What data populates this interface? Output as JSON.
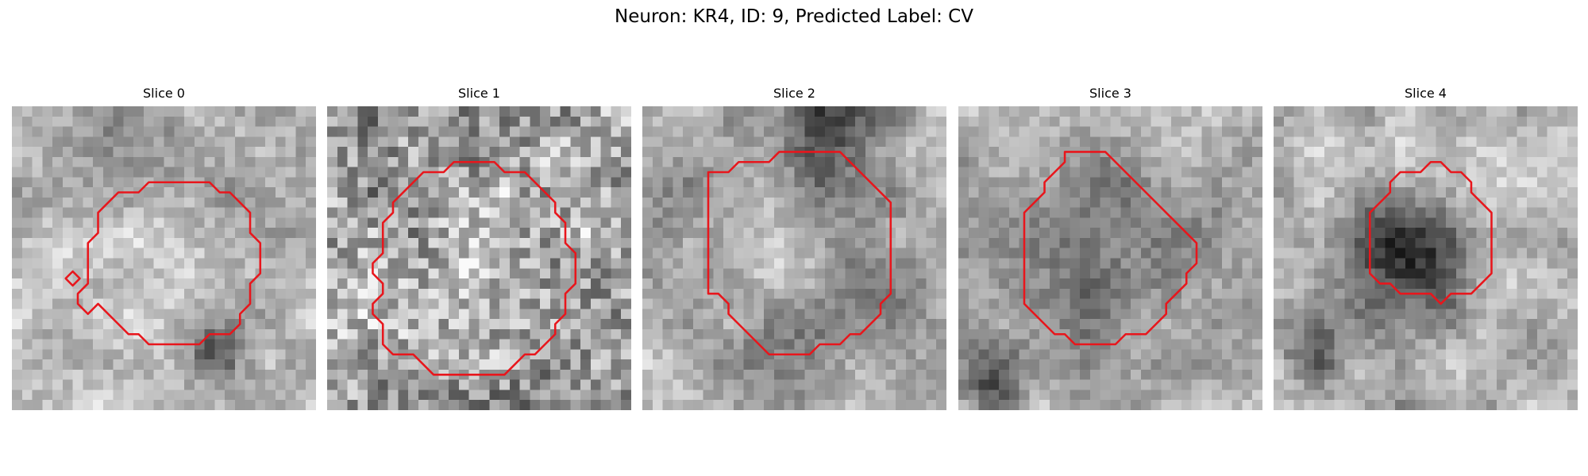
{
  "figure": {
    "title": "Neuron: KR4, ID: 9, Predicted Label: CV",
    "grid_size": 30,
    "colormap": "gray",
    "contour_color": "#e8161c"
  },
  "panels": [
    {
      "label": "Slice 0",
      "seed": 11,
      "base_gray": 185,
      "noise": 28,
      "blobs": [
        {
          "cx": 14.0,
          "cy": 15.5,
          "r": 5.5,
          "delta": 25
        },
        {
          "cx": 12.0,
          "cy": 2.5,
          "r": 6.0,
          "delta": -55
        },
        {
          "cx": 19.5,
          "cy": 24.5,
          "r": 2.5,
          "delta": -85
        },
        {
          "cx": 24.0,
          "cy": 8.0,
          "r": 4.0,
          "delta": -25
        }
      ],
      "contours": [
        [
          [
            13.5,
            7.5
          ],
          [
            19.5,
            7.5
          ],
          [
            20.5,
            8.5
          ],
          [
            21.5,
            8.5
          ],
          [
            23.5,
            10.5
          ],
          [
            23.5,
            12.5
          ],
          [
            24.5,
            13.5
          ],
          [
            24.5,
            16.5
          ],
          [
            23.5,
            17.5
          ],
          [
            23.5,
            19.5
          ],
          [
            22.5,
            20.5
          ],
          [
            22.5,
            21.5
          ],
          [
            21.5,
            22.5
          ],
          [
            19.5,
            22.5
          ],
          [
            18.5,
            23.5
          ],
          [
            13.5,
            23.5
          ],
          [
            12.5,
            22.5
          ],
          [
            11.5,
            22.5
          ],
          [
            10.5,
            21.5
          ],
          [
            9.5,
            20.5
          ],
          [
            8.5,
            19.5
          ],
          [
            7.5,
            20.5
          ],
          [
            6.5,
            19.5
          ],
          [
            6.5,
            18.5
          ],
          [
            7.5,
            17.5
          ],
          [
            7.5,
            13.5
          ],
          [
            8.5,
            12.5
          ],
          [
            8.5,
            10.5
          ],
          [
            10.5,
            8.5
          ],
          [
            12.5,
            8.5
          ]
        ],
        [
          [
            6.0,
            16.3
          ],
          [
            6.7,
            17.0
          ],
          [
            6.0,
            17.7
          ],
          [
            5.3,
            17.0
          ]
        ]
      ]
    },
    {
      "label": "Slice 1",
      "seed": 23,
      "base_gray": 160,
      "noise": 62,
      "blobs": [
        {
          "cx": 15.0,
          "cy": 14.0,
          "r": 6.5,
          "delta": 18
        }
      ],
      "contours": [
        [
          [
            13.5,
            5.5
          ],
          [
            16.5,
            5.5
          ],
          [
            17.5,
            6.5
          ],
          [
            19.5,
            6.5
          ],
          [
            22.5,
            9.5
          ],
          [
            22.5,
            10.5
          ],
          [
            23.5,
            11.5
          ],
          [
            23.5,
            13.5
          ],
          [
            24.5,
            14.5
          ],
          [
            24.5,
            17.5
          ],
          [
            23.5,
            18.5
          ],
          [
            23.5,
            20.5
          ],
          [
            22.5,
            21.5
          ],
          [
            22.5,
            22.5
          ],
          [
            20.5,
            24.5
          ],
          [
            19.5,
            24.5
          ],
          [
            17.5,
            26.5
          ],
          [
            16.5,
            26.5
          ],
          [
            15.5,
            26.5
          ],
          [
            10.5,
            26.5
          ],
          [
            8.5,
            24.5
          ],
          [
            6.5,
            24.5
          ],
          [
            5.5,
            23.5
          ],
          [
            5.5,
            21.5
          ],
          [
            4.5,
            20.5
          ],
          [
            4.5,
            19.5
          ],
          [
            5.5,
            18.5
          ],
          [
            5.5,
            17.5
          ],
          [
            4.5,
            16.5
          ],
          [
            4.5,
            15.5
          ],
          [
            5.5,
            14.5
          ],
          [
            5.5,
            11.5
          ],
          [
            6.5,
            10.5
          ],
          [
            6.5,
            9.5
          ],
          [
            9.5,
            6.5
          ],
          [
            11.5,
            6.5
          ],
          [
            12.5,
            5.5
          ]
        ]
      ]
    },
    {
      "label": "Slice 2",
      "seed": 37,
      "base_gray": 175,
      "noise": 26,
      "blobs": [
        {
          "cx": 15.0,
          "cy": 16.0,
          "r": 9.5,
          "delta": -85
        },
        {
          "cx": 13.0,
          "cy": 15.0,
          "r": 6.5,
          "delta": 95
        },
        {
          "cx": 19.0,
          "cy": 1.5,
          "r": 5.0,
          "delta": -95
        },
        {
          "cx": 1.0,
          "cy": 9.0,
          "r": 4.0,
          "delta": -40
        }
      ],
      "contours": [
        [
          [
            13.5,
            4.5
          ],
          [
            19.5,
            4.5
          ],
          [
            20.5,
            5.5
          ],
          [
            22.5,
            7.5
          ],
          [
            23.5,
            8.5
          ],
          [
            24.5,
            9.5
          ],
          [
            24.5,
            18.5
          ],
          [
            23.5,
            19.5
          ],
          [
            23.5,
            20.5
          ],
          [
            22.5,
            21.5
          ],
          [
            21.5,
            22.5
          ],
          [
            20.5,
            22.5
          ],
          [
            19.5,
            23.5
          ],
          [
            17.5,
            23.5
          ],
          [
            16.5,
            24.5
          ],
          [
            13.5,
            24.5
          ],
          [
            12.5,
            24.5
          ],
          [
            11.5,
            23.5
          ],
          [
            10.5,
            22.5
          ],
          [
            9.5,
            21.5
          ],
          [
            8.5,
            20.5
          ],
          [
            8.5,
            19.5
          ],
          [
            7.5,
            18.5
          ],
          [
            6.5,
            18.5
          ],
          [
            6.5,
            6.5
          ],
          [
            7.5,
            6.5
          ],
          [
            8.5,
            6.5
          ],
          [
            9.5,
            5.5
          ],
          [
            12.5,
            5.5
          ]
        ]
      ]
    },
    {
      "label": "Slice 3",
      "seed": 41,
      "base_gray": 178,
      "noise": 26,
      "blobs": [
        {
          "cx": 13.0,
          "cy": 14.5,
          "r": 8.0,
          "delta": -95
        },
        {
          "cx": 12.5,
          "cy": 13.5,
          "r": 4.0,
          "delta": 65
        },
        {
          "cx": 3.0,
          "cy": 27.5,
          "r": 3.0,
          "delta": -80
        },
        {
          "cx": 28.0,
          "cy": 27.0,
          "r": 3.0,
          "delta": -30
        }
      ],
      "contours": [
        [
          [
            10.5,
            4.5
          ],
          [
            14.5,
            4.5
          ],
          [
            17.5,
            7.5
          ],
          [
            18.5,
            8.5
          ],
          [
            19.5,
            9.5
          ],
          [
            20.5,
            10.5
          ],
          [
            22.5,
            12.5
          ],
          [
            23.5,
            13.5
          ],
          [
            23.5,
            15.5
          ],
          [
            22.5,
            16.5
          ],
          [
            22.5,
            17.5
          ],
          [
            21.5,
            18.5
          ],
          [
            20.5,
            19.5
          ],
          [
            20.5,
            20.5
          ],
          [
            18.5,
            22.5
          ],
          [
            16.5,
            22.5
          ],
          [
            15.5,
            23.5
          ],
          [
            11.5,
            23.5
          ],
          [
            10.5,
            22.5
          ],
          [
            9.5,
            22.5
          ],
          [
            8.5,
            21.5
          ],
          [
            7.5,
            20.5
          ],
          [
            6.5,
            19.5
          ],
          [
            6.5,
            10.5
          ],
          [
            7.5,
            9.5
          ],
          [
            8.5,
            8.5
          ],
          [
            8.5,
            7.5
          ],
          [
            9.5,
            6.5
          ],
          [
            10.5,
            5.5
          ]
        ]
      ]
    },
    {
      "label": "Slice 4",
      "seed": 53,
      "base_gray": 182,
      "noise": 26,
      "blobs": [
        {
          "cx": 12.5,
          "cy": 15.5,
          "r": 5.5,
          "delta": -140
        },
        {
          "cx": 4.0,
          "cy": 24.5,
          "r": 3.0,
          "delta": -70
        },
        {
          "cx": 12.0,
          "cy": 25.5,
          "r": 3.0,
          "delta": -45
        },
        {
          "cx": 26.0,
          "cy": 23.0,
          "r": 4.0,
          "delta": -30
        }
      ],
      "contours": [
        [
          [
            15.5,
            5.5
          ],
          [
            16.5,
            5.5
          ],
          [
            17.5,
            6.5
          ],
          [
            18.5,
            6.5
          ],
          [
            19.5,
            7.5
          ],
          [
            19.5,
            8.5
          ],
          [
            20.5,
            9.5
          ],
          [
            21.5,
            10.5
          ],
          [
            21.5,
            16.5
          ],
          [
            20.5,
            17.5
          ],
          [
            19.5,
            18.5
          ],
          [
            17.5,
            18.5
          ],
          [
            16.5,
            19.5
          ],
          [
            15.5,
            18.5
          ],
          [
            12.5,
            18.5
          ],
          [
            11.5,
            17.5
          ],
          [
            10.5,
            17.5
          ],
          [
            9.5,
            16.5
          ],
          [
            9.5,
            14.5
          ],
          [
            9.5,
            10.5
          ],
          [
            10.5,
            9.5
          ],
          [
            11.5,
            8.5
          ],
          [
            11.5,
            7.5
          ],
          [
            12.5,
            6.5
          ],
          [
            14.5,
            6.5
          ]
        ]
      ]
    }
  ]
}
